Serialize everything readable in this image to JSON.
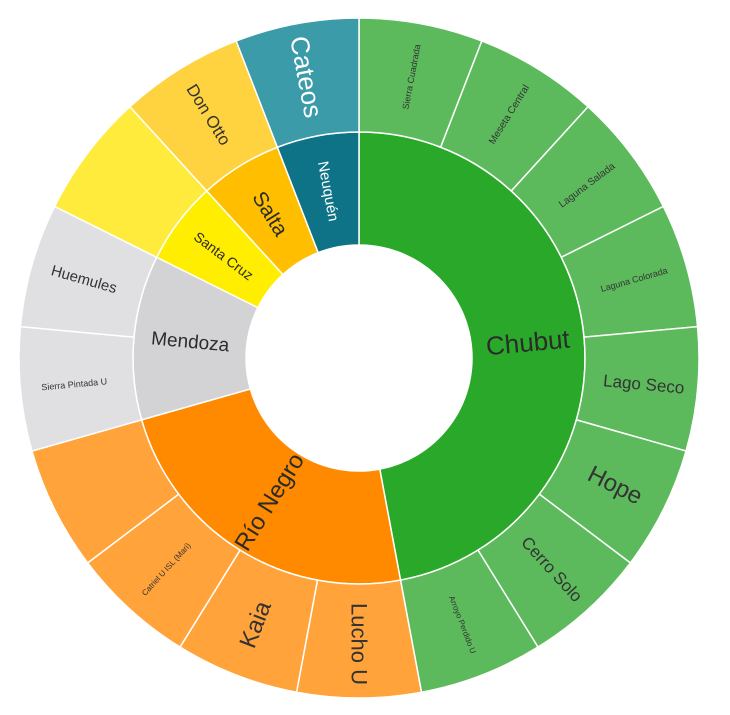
{
  "chart_data": {
    "type": "sunburst",
    "title": "",
    "children": [
      {
        "name": "Chubut",
        "color": "#29A829",
        "children": [
          {
            "name": "Sierra Cuadrada",
            "value": 1,
            "color": "#5CBA5C"
          },
          {
            "name": "Meseta Central",
            "value": 1,
            "color": "#5CBA5C"
          },
          {
            "name": "Laguna Salada",
            "value": 1,
            "color": "#5CBA5C"
          },
          {
            "name": "Laguna Colorada",
            "value": 1,
            "color": "#5CBA5C"
          },
          {
            "name": "Lago Seco",
            "value": 1,
            "color": "#5CBA5C"
          },
          {
            "name": "Hope",
            "value": 1,
            "color": "#5CBA5C"
          },
          {
            "name": "Cerro Solo",
            "value": 1,
            "color": "#5CBA5C"
          },
          {
            "name": "Arroyo Perdido U",
            "value": 1,
            "color": "#5CBA5C"
          }
        ]
      },
      {
        "name": "Río Negro",
        "color": "#FF8A00",
        "children": [
          {
            "name": "Lucho U",
            "value": 1,
            "color": "#FFA33A"
          },
          {
            "name": "Kaia",
            "value": 1,
            "color": "#FFA33A"
          },
          {
            "name": "Catriel U ISL (Mari)",
            "value": 1,
            "color": "#FFA33A"
          },
          {
            "name": "",
            "value": 1,
            "color": "#FFA33A"
          }
        ]
      },
      {
        "name": "Mendoza",
        "color": "#D3D3D6",
        "children": [
          {
            "name": "Sierra Pintada U",
            "value": 1,
            "color": "#E0E0E2"
          },
          {
            "name": "Huemules",
            "value": 1,
            "color": "#E0E0E2"
          }
        ]
      },
      {
        "name": "Santa Cruz",
        "color": "#FFEE00",
        "children": [
          {
            "name": "",
            "value": 1,
            "color": "#FFEB3B"
          }
        ]
      },
      {
        "name": "Salta",
        "color": "#FFBF00",
        "children": [
          {
            "name": "Don Otto",
            "value": 1,
            "color": "#FFD23F"
          }
        ]
      },
      {
        "name": "Neuquén",
        "color": "#0E7386",
        "children": [
          {
            "name": "Cateos",
            "value": 1,
            "color": "#3B9BA8"
          }
        ]
      }
    ]
  }
}
